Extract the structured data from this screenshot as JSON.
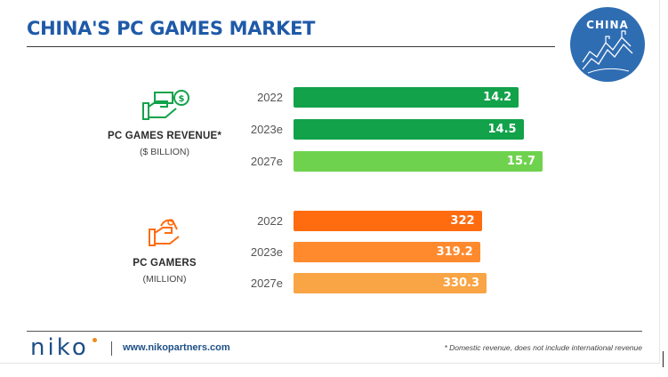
{
  "title": "CHINA'S PC GAMES MARKET",
  "badge": {
    "text": "CHINA",
    "color": "#2f6db3"
  },
  "colors": {
    "title": "#1f5aa8",
    "revenue_dark": "#12a24a",
    "revenue_light": "#6fd24e",
    "gamers_dark": "#ff6c10",
    "gamers_mid": "#ff8a2e",
    "gamers_light": "#f9a545"
  },
  "chart_data": [
    {
      "type": "bar",
      "orientation": "horizontal",
      "label": "PC GAMES REVENUE*",
      "unit": "($ BILLION)",
      "icon": "money-hand-icon",
      "categories": [
        "2022",
        "2023e",
        "2027e"
      ],
      "values": [
        14.2,
        14.5,
        15.7
      ],
      "value_labels": [
        "14.2",
        "14.5",
        "15.7"
      ],
      "bar_colors": [
        "#12a24a",
        "#12a24a",
        "#6fd24e"
      ]
    },
    {
      "type": "bar",
      "orientation": "horizontal",
      "label": "PC GAMERS",
      "unit": "(MILLION)",
      "icon": "gamer-hand-icon",
      "categories": [
        "2022",
        "2023e",
        "2027e"
      ],
      "values": [
        322,
        319.2,
        330.3
      ],
      "value_labels": [
        "322",
        "319.2",
        "330.3"
      ],
      "bar_colors": [
        "#ff6c10",
        "#ff8a2e",
        "#f9a545"
      ]
    }
  ],
  "footer": {
    "logo": "niko",
    "url": "www.nikopartners.com",
    "footnote": "* Domestic revenue, does not include international revenue"
  }
}
